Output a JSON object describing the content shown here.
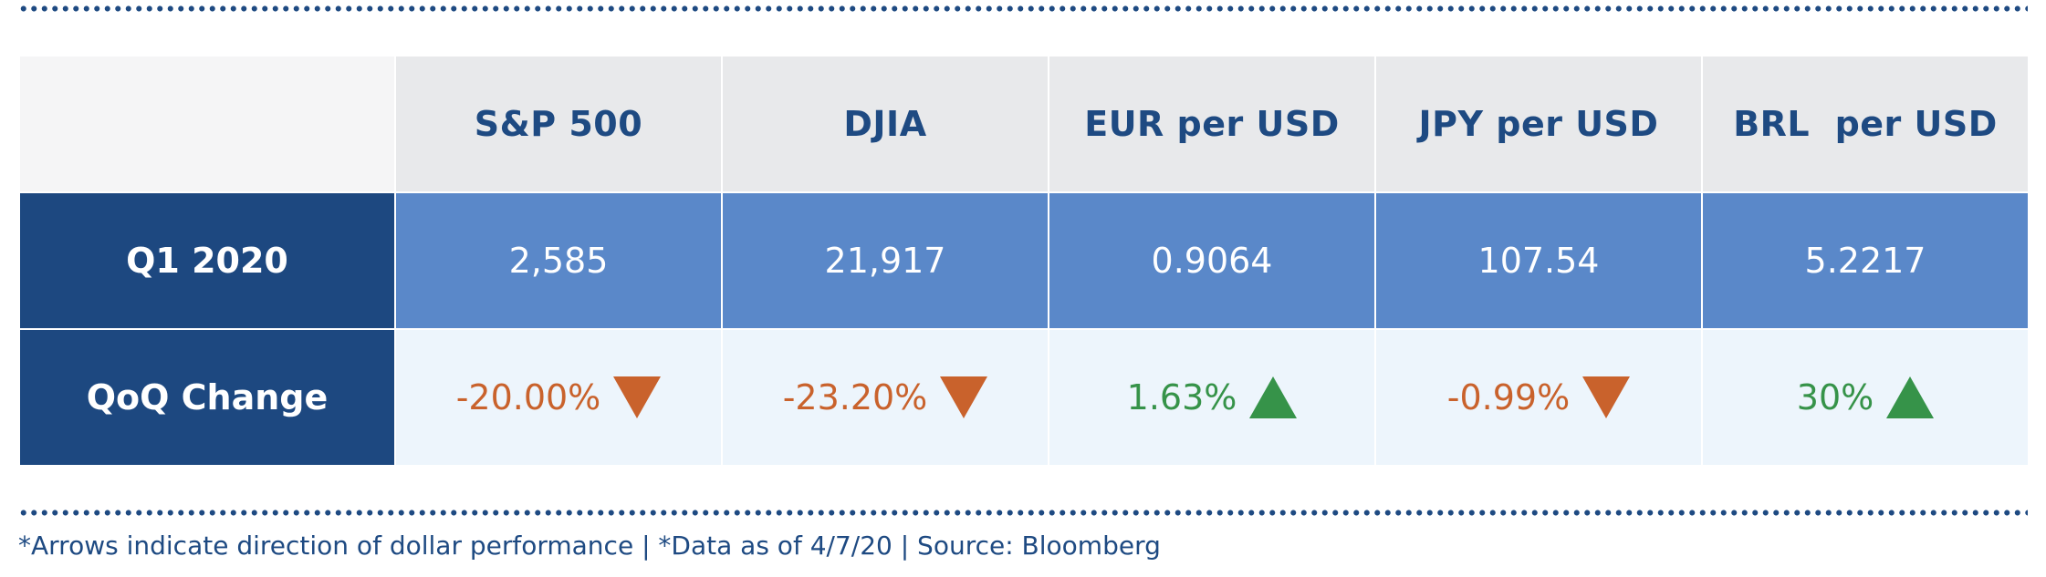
{
  "chart_data": {
    "type": "table",
    "columns": [
      "",
      "S&P 500",
      "DJIA",
      "EUR per USD",
      "JPY per USD",
      "BRL  per USD"
    ],
    "rows": [
      {
        "label": "Q1 2020",
        "cells": [
          "2,585",
          "21,917",
          "0.9064",
          "107.54",
          "5.2217"
        ]
      },
      {
        "label": "QoQ Change",
        "cells": [
          "-20.00%",
          "-23.20%",
          "1.63%",
          "-0.99%",
          "30%"
        ],
        "directions": [
          "down",
          "down",
          "up",
          "down",
          "up"
        ],
        "arrow_icons": [
          "triangle-down-icon",
          "triangle-down-icon",
          "triangle-up-icon",
          "triangle-down-icon",
          "triangle-up-icon"
        ]
      }
    ],
    "footnote": "*Arrows indicate direction of dollar performance | *Data as of 4/7/20 | Source: Bloomberg"
  },
  "colors": {
    "navy": "#1d4880",
    "header_bg": "#e8e9eb",
    "value_row_bg": "#5a88c9",
    "change_row_bg": "#edf5fc",
    "down": "#c9622c",
    "up": "#369349",
    "dots": "#1e4a82"
  }
}
